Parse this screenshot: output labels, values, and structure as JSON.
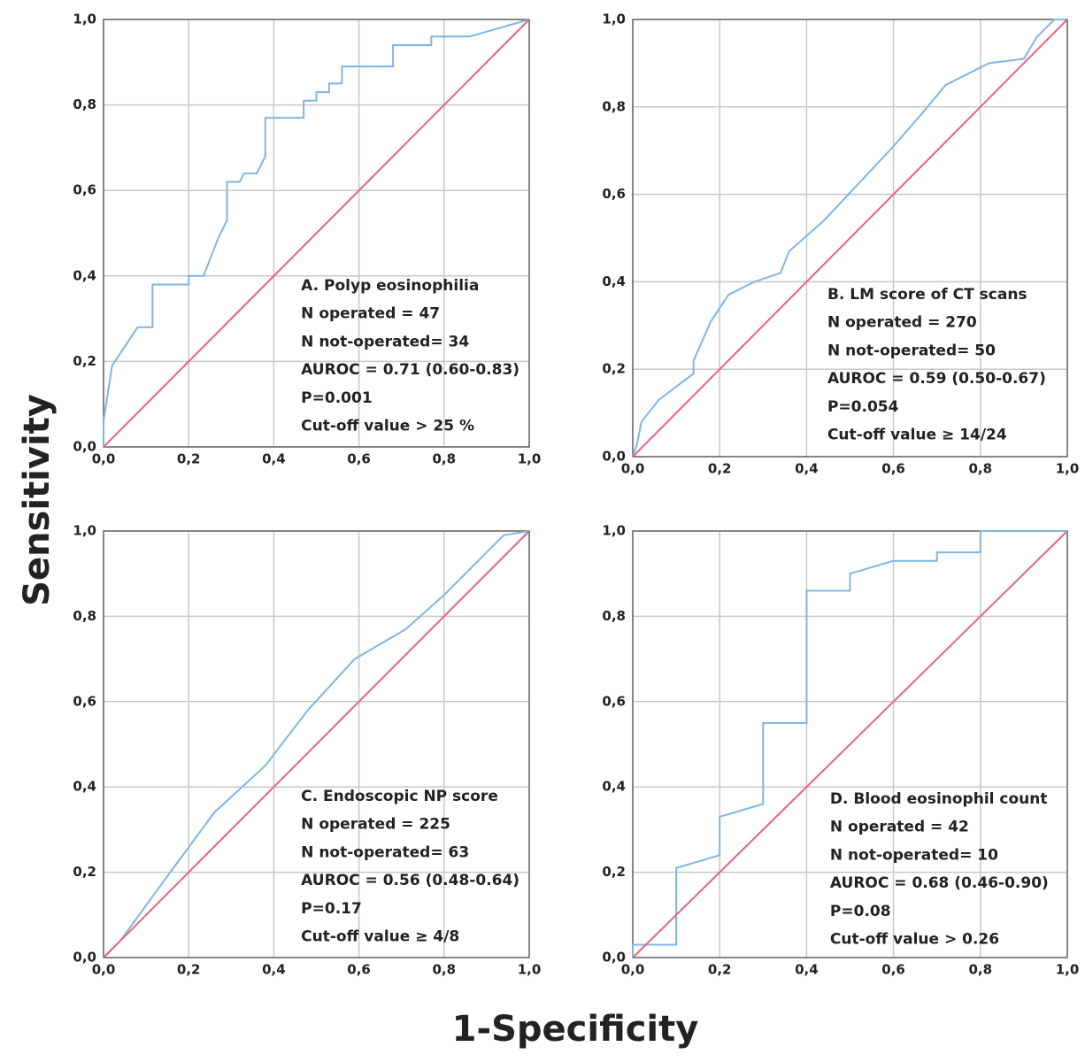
{
  "xlabel": "1-Specificity",
  "ylabel": "Sensitivity",
  "chart_data": [
    {
      "type": "line",
      "grid": true,
      "annotations": [
        "A. Polyp eosinophilia",
        "N operated = 47",
        "N not-operated= 34",
        "AUROC = 0.71 (0.60-0.83)",
        "P=0.001",
        "Cut-off value > 25 %"
      ],
      "xlim": [
        0,
        1
      ],
      "ylim": [
        0,
        1
      ],
      "xticks": [
        {
          "value": 0,
          "label": "0,0"
        },
        {
          "value": 0.2,
          "label": "0,2"
        },
        {
          "value": 0.4,
          "label": "0,4"
        },
        {
          "value": 0.6,
          "label": "0,6"
        },
        {
          "value": 0.8,
          "label": "0,8"
        },
        {
          "value": 1,
          "label": "1,0"
        }
      ],
      "yticks": [
        {
          "value": 0,
          "label": "0,0"
        },
        {
          "value": 0.2,
          "label": "0,2"
        },
        {
          "value": 0.4,
          "label": "0,4"
        },
        {
          "value": 0.6,
          "label": "0,6"
        },
        {
          "value": 0.8,
          "label": "0,8"
        },
        {
          "value": 1,
          "label": "1,0"
        }
      ],
      "series": [
        {
          "color": "#7fb5e3",
          "x": [
            0,
            0,
            0.02,
            0.08,
            0.115,
            0.115,
            0.2,
            0.2,
            0.235,
            0.27,
            0.29,
            0.29,
            0.32,
            0.33,
            0.36,
            0.38,
            0.38,
            0.47,
            0.47,
            0.5,
            0.5,
            0.53,
            0.53,
            0.56,
            0.56,
            0.68,
            0.68,
            0.77,
            0.77,
            0.86,
            1
          ],
          "values": [
            0,
            0.06,
            0.19,
            0.28,
            0.28,
            0.38,
            0.38,
            0.4,
            0.4,
            0.49,
            0.53,
            0.62,
            0.62,
            0.64,
            0.64,
            0.68,
            0.77,
            0.77,
            0.81,
            0.81,
            0.83,
            0.83,
            0.85,
            0.85,
            0.89,
            0.89,
            0.94,
            0.94,
            0.96,
            0.96,
            1
          ]
        },
        {
          "color": "#e9637d",
          "x": [
            0,
            1
          ],
          "values": [
            0,
            1
          ]
        }
      ]
    },
    {
      "type": "line",
      "grid": true,
      "annotations": [
        "B. LM score of CT scans",
        "N operated = 270",
        "N not-operated= 50",
        "AUROC = 0.59 (0.50-0.67)",
        "P=0.054",
        "Cut-off value ≥ 14/24"
      ],
      "xlim": [
        0,
        1
      ],
      "ylim": [
        0,
        1
      ],
      "xticks": [
        {
          "value": 0,
          "label": "0,0"
        },
        {
          "value": 0.2,
          "label": "0,2"
        },
        {
          "value": 0.4,
          "label": "0,4"
        },
        {
          "value": 0.6,
          "label": "0,6"
        },
        {
          "value": 0.8,
          "label": "0,8"
        },
        {
          "value": 1,
          "label": "1,0"
        }
      ],
      "yticks": [
        {
          "value": 0,
          "label": "0,0"
        },
        {
          "value": 0.2,
          "label": "0,2"
        },
        {
          "value": 0.4,
          "label": "0,4"
        },
        {
          "value": 0.6,
          "label": "0,6"
        },
        {
          "value": 0.8,
          "label": "0,8"
        },
        {
          "value": 1,
          "label": "1,0"
        }
      ],
      "series": [
        {
          "color": "#7fb5e3",
          "x": [
            0,
            0.01,
            0.02,
            0.06,
            0.14,
            0.14,
            0.18,
            0.22,
            0.28,
            0.34,
            0.36,
            0.44,
            0.6,
            0.67,
            0.72,
            0.82,
            0.9,
            0.93,
            0.95,
            0.97,
            1
          ],
          "values": [
            0,
            0.03,
            0.08,
            0.13,
            0.19,
            0.22,
            0.31,
            0.37,
            0.4,
            0.42,
            0.47,
            0.54,
            0.71,
            0.79,
            0.85,
            0.9,
            0.91,
            0.96,
            0.98,
            1,
            1
          ]
        },
        {
          "color": "#e9637d",
          "x": [
            0,
            1
          ],
          "values": [
            0,
            1
          ]
        }
      ]
    },
    {
      "type": "line",
      "grid": true,
      "annotations": [
        "C. Endoscopic NP score",
        "N operated = 225",
        "N not-operated= 63",
        "AUROC = 0.56 (0.48-0.64)",
        "P=0.17",
        "Cut-off value ≥ 4/8"
      ],
      "xlim": [
        0,
        1
      ],
      "ylim": [
        0,
        1
      ],
      "xticks": [
        {
          "value": 0,
          "label": "0,0"
        },
        {
          "value": 0.2,
          "label": "0,2"
        },
        {
          "value": 0.4,
          "label": "0,4"
        },
        {
          "value": 0.6,
          "label": "0,6"
        },
        {
          "value": 0.8,
          "label": "0,8"
        },
        {
          "value": 1,
          "label": "1,0"
        }
      ],
      "yticks": [
        {
          "value": 0,
          "label": "0,0"
        },
        {
          "value": 0.2,
          "label": "0,2"
        },
        {
          "value": 0.4,
          "label": "0,4"
        },
        {
          "value": 0.6,
          "label": "0,6"
        },
        {
          "value": 0.8,
          "label": "0,8"
        },
        {
          "value": 1,
          "label": "1,0"
        }
      ],
      "series": [
        {
          "color": "#7fb5e3",
          "x": [
            0,
            0.04,
            0.12,
            0.26,
            0.38,
            0.48,
            0.59,
            0.71,
            0.8,
            0.94,
            1
          ],
          "values": [
            0,
            0.04,
            0.15,
            0.34,
            0.45,
            0.58,
            0.7,
            0.77,
            0.85,
            0.99,
            1
          ]
        },
        {
          "color": "#e9637d",
          "x": [
            0,
            1
          ],
          "values": [
            0,
            1
          ]
        }
      ]
    },
    {
      "type": "line",
      "grid": true,
      "annotations": [
        "D. Blood eosinophil count",
        "N operated = 42",
        "N not-operated= 10",
        "AUROC = 0.68 (0.46-0.90)",
        "P=0.08",
        "Cut-off value > 0.26"
      ],
      "xlim": [
        0,
        1
      ],
      "ylim": [
        0,
        1
      ],
      "xticks": [
        {
          "value": 0,
          "label": "0,0"
        },
        {
          "value": 0.2,
          "label": "0,2"
        },
        {
          "value": 0.4,
          "label": "0,4"
        },
        {
          "value": 0.6,
          "label": "0,6"
        },
        {
          "value": 0.8,
          "label": "0,8"
        },
        {
          "value": 1,
          "label": "1,0"
        }
      ],
      "yticks": [
        {
          "value": 0,
          "label": "0,0"
        },
        {
          "value": 0.2,
          "label": "0,2"
        },
        {
          "value": 0.4,
          "label": "0,4"
        },
        {
          "value": 0.6,
          "label": "0,6"
        },
        {
          "value": 0.8,
          "label": "0,8"
        },
        {
          "value": 1,
          "label": "1,0"
        }
      ],
      "series": [
        {
          "color": "#7fb5e3",
          "x": [
            0,
            0,
            0.1,
            0.1,
            0.2,
            0.2,
            0.3,
            0.3,
            0.4,
            0.4,
            0.5,
            0.5,
            0.6,
            0.7,
            0.7,
            0.8,
            0.8,
            1
          ],
          "values": [
            0,
            0.03,
            0.03,
            0.21,
            0.24,
            0.33,
            0.36,
            0.55,
            0.55,
            0.86,
            0.86,
            0.9,
            0.93,
            0.93,
            0.95,
            0.95,
            1,
            1
          ]
        },
        {
          "color": "#e9637d",
          "x": [
            0,
            1
          ],
          "values": [
            0,
            1
          ]
        }
      ]
    }
  ]
}
